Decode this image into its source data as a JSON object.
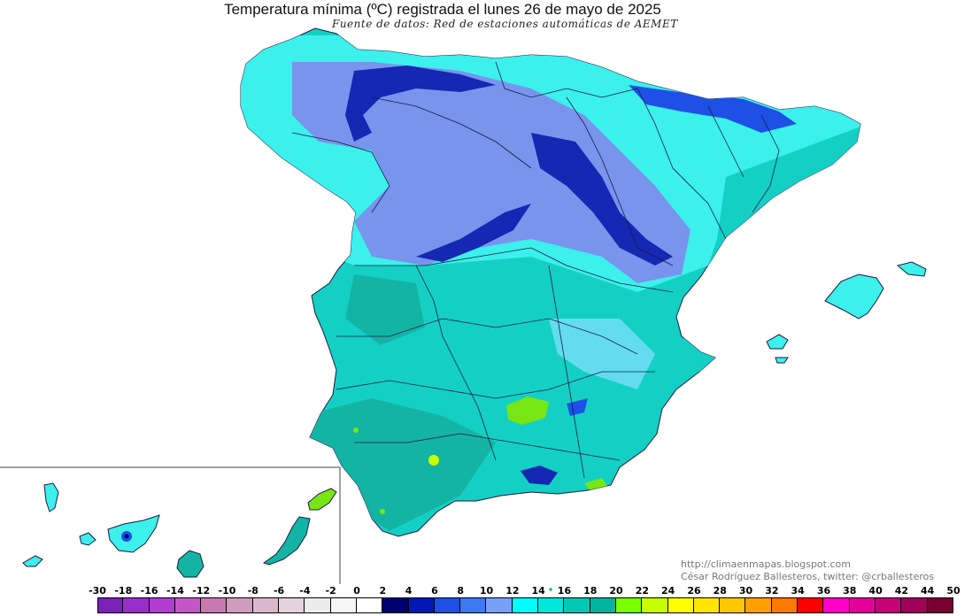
{
  "header": {
    "title": "Temperatura mínima (ºC) registrada el lunes 26 de mayo de 2025",
    "source": "Fuente de datos: Red de estaciones automáticas de AEMET"
  },
  "credits": {
    "website": "http://climaenmapas.blogspot.com",
    "author": "César Rodríguez Ballesteros, twitter: @crballesteros"
  },
  "legend": {
    "labels": [
      "-30",
      "-18",
      "-16",
      "-14",
      "-12",
      "-10",
      "-8",
      "-6",
      "-4",
      "-2",
      "0",
      "2",
      "4",
      "6",
      "8",
      "10",
      "12",
      "14",
      "16",
      "18",
      "20",
      "22",
      "24",
      "26",
      "28",
      "30",
      "32",
      "34",
      "36",
      "38",
      "40",
      "42",
      "44",
      "50"
    ],
    "colors": [
      "#7a22b8",
      "#9a2ec8",
      "#b23cd2",
      "#c457c8",
      "#c87ab0",
      "#d09cbe",
      "#dcb8cc",
      "#e4d2dc",
      "#ececec",
      "#f6f6f6",
      "#ffffff",
      "#000070",
      "#0019b4",
      "#1e50e6",
      "#3c78f0",
      "#78a0f8",
      "#00ffff",
      "#00e6dc",
      "#00c8b4",
      "#00b4a0",
      "#78ff00",
      "#c8ff00",
      "#ffff00",
      "#ffe600",
      "#ffc800",
      "#ffa000",
      "#ff7800",
      "#ff0000",
      "#ff00c8",
      "#e6009a",
      "#c80078",
      "#a0005a",
      "#780032"
    ]
  },
  "map": {
    "palette": {
      "border": "#1a1a40",
      "cold": "#1428b4",
      "cool": "#7894ec",
      "fresh": "#3cf0ec",
      "mild": "#14d0c4",
      "warm": "#14b4a4",
      "hot": "#78e614"
    }
  }
}
